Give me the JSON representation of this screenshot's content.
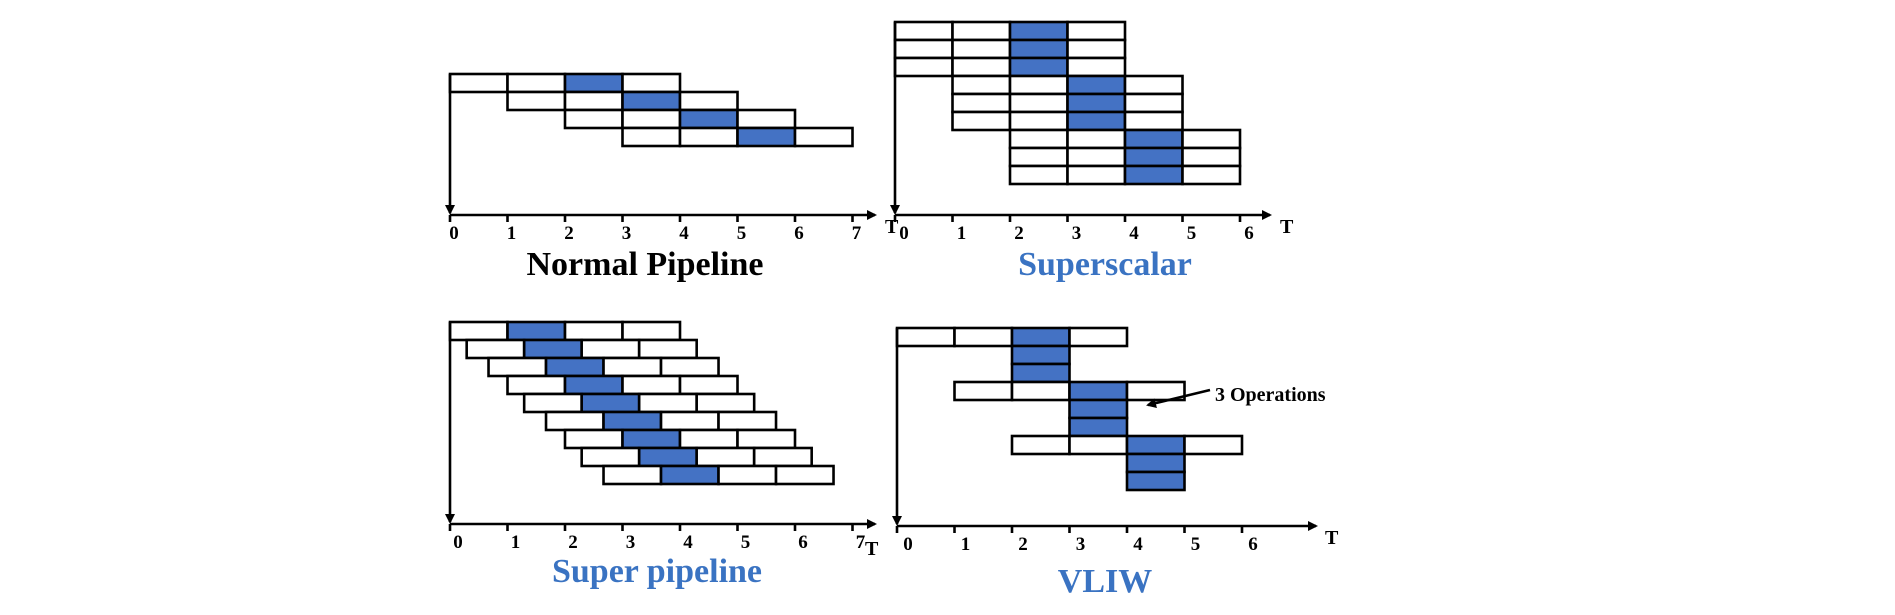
{
  "colors": {
    "active": "#4472c4",
    "title_blue": "#3a73c2",
    "title_black": "#000000"
  },
  "diagrams": [
    {
      "id": "normal",
      "title": "Normal Pipeline",
      "title_color": "black",
      "axis_label": "T",
      "ticks": [
        "0",
        "1",
        "2",
        "3",
        "4",
        "5",
        "6",
        "7"
      ],
      "rows": [
        {
          "start": 0,
          "stages": 4,
          "active": [
            2
          ],
          "width": 1
        },
        {
          "start": 1,
          "stages": 4,
          "active": [
            2
          ],
          "width": 1
        },
        {
          "start": 2,
          "stages": 4,
          "active": [
            2
          ],
          "width": 1
        },
        {
          "start": 3,
          "stages": 4,
          "active": [
            2
          ],
          "width": 1
        }
      ]
    },
    {
      "id": "superscalar",
      "title": "Superscalar",
      "title_color": "blue",
      "axis_label": "T",
      "ticks": [
        "0",
        "1",
        "2",
        "3",
        "4",
        "5",
        "6"
      ],
      "rows": [
        {
          "start": 0,
          "stages": 4,
          "active": [
            2
          ],
          "width": 1
        },
        {
          "start": 0,
          "stages": 4,
          "active": [
            2
          ],
          "width": 1
        },
        {
          "start": 0,
          "stages": 4,
          "active": [
            2
          ],
          "width": 1
        },
        {
          "start": 1,
          "stages": 4,
          "active": [
            2
          ],
          "width": 1
        },
        {
          "start": 1,
          "stages": 4,
          "active": [
            2
          ],
          "width": 1
        },
        {
          "start": 1,
          "stages": 4,
          "active": [
            2
          ],
          "width": 1
        },
        {
          "start": 2,
          "stages": 4,
          "active": [
            2
          ],
          "width": 1
        },
        {
          "start": 2,
          "stages": 4,
          "active": [
            2
          ],
          "width": 1
        },
        {
          "start": 2,
          "stages": 4,
          "active": [
            2
          ],
          "width": 1
        }
      ]
    },
    {
      "id": "superpipeline",
      "title": "Super pipeline",
      "title_color": "blue",
      "axis_label": "T",
      "ticks": [
        "0",
        "1",
        "2",
        "3",
        "4",
        "5",
        "6",
        "7"
      ],
      "rows": [
        {
          "start": 0.0,
          "stages": 4,
          "active": [
            1
          ],
          "width": 1
        },
        {
          "start": 0.29,
          "stages": 4,
          "active": [
            1
          ],
          "width": 1
        },
        {
          "start": 0.67,
          "stages": 4,
          "active": [
            1
          ],
          "width": 1
        },
        {
          "start": 1.0,
          "stages": 4,
          "active": [
            1
          ],
          "width": 1
        },
        {
          "start": 1.29,
          "stages": 4,
          "active": [
            1
          ],
          "width": 1
        },
        {
          "start": 1.67,
          "stages": 4,
          "active": [
            1
          ],
          "width": 1
        },
        {
          "start": 2.0,
          "stages": 4,
          "active": [
            1
          ],
          "width": 1
        },
        {
          "start": 2.29,
          "stages": 4,
          "active": [
            1
          ],
          "width": 1
        },
        {
          "start": 2.67,
          "stages": 4,
          "active": [
            1
          ],
          "width": 1
        }
      ]
    },
    {
      "id": "vliw",
      "title": "VLIW",
      "title_color": "blue",
      "axis_label": "T",
      "ticks": [
        "0",
        "1",
        "2",
        "3",
        "4",
        "5",
        "6"
      ],
      "annotation": "3 Operations",
      "rows": [
        {
          "start": 0,
          "stages": 4,
          "active": [
            2
          ],
          "width": 1
        },
        {
          "start": 2,
          "stages": 1,
          "active": [
            0
          ],
          "width": 1
        },
        {
          "start": 2,
          "stages": 1,
          "active": [
            0
          ],
          "width": 1
        },
        {
          "start": 1,
          "stages": 4,
          "active": [
            2
          ],
          "width": 1
        },
        {
          "start": 3,
          "stages": 1,
          "active": [
            0
          ],
          "width": 1
        },
        {
          "start": 3,
          "stages": 1,
          "active": [
            0
          ],
          "width": 1
        },
        {
          "start": 2,
          "stages": 4,
          "active": [
            2
          ],
          "width": 1
        },
        {
          "start": 4,
          "stages": 1,
          "active": [
            0
          ],
          "width": 1
        },
        {
          "start": 4,
          "stages": 1,
          "active": [
            0
          ],
          "width": 1
        }
      ]
    }
  ]
}
